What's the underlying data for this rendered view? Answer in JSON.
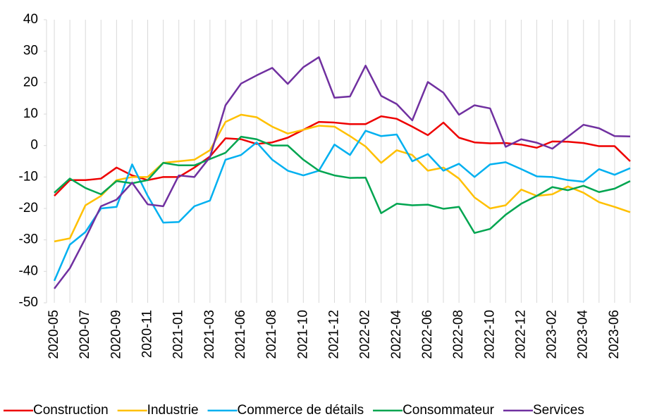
{
  "chart_data": {
    "type": "line",
    "categories": [
      "2020-05",
      null,
      "2020-07",
      null,
      "2020-09",
      null,
      "2020-11",
      null,
      "2021-01",
      null,
      "2021-03",
      null,
      "2021-06",
      null,
      "2021-08",
      null,
      "2021-10",
      null,
      "2021-12",
      null,
      "2022-02",
      null,
      "2022-04",
      null,
      "2022-06",
      null,
      "2022-08",
      null,
      "2022-10",
      null,
      "2022-12",
      null,
      "2023-02",
      null,
      "2023-04",
      null,
      "2023-06",
      null
    ],
    "series": [
      {
        "name": "Construction",
        "color": "#ee0000",
        "values": [
          -16,
          -11,
          -11,
          -10.5,
          -7,
          -9.5,
          -11,
          -10,
          -10,
          -7,
          -3.5,
          2.3,
          2,
          0.5,
          1,
          2.5,
          5,
          7.5,
          7.3,
          6.8,
          6.8,
          9.3,
          8.5,
          6,
          3.3,
          7.3,
          2.5,
          1,
          0.7,
          0.8,
          0.3,
          -0.7,
          1.3,
          1.2,
          0.8,
          -0.2,
          -0.2,
          -5
        ]
      },
      {
        "name": "Industrie",
        "color": "#ffc000",
        "values": [
          -30.5,
          -29.5,
          -19,
          -16,
          -11,
          -10,
          -10,
          -5.5,
          -5,
          -4.5,
          -1.5,
          7.5,
          9.8,
          9,
          6,
          3.8,
          5,
          6.3,
          6,
          3,
          -0.3,
          -5.5,
          -1.5,
          -3,
          -8,
          -7,
          -10.5,
          -16.5,
          -20,
          -19,
          -14,
          -16,
          -15.5,
          -13,
          -15,
          -18,
          -19.5,
          -21.2
        ]
      },
      {
        "name": "Commerce de détails",
        "color": "#00b0f0",
        "values": [
          -43,
          -31.5,
          -27.5,
          -20,
          -19.5,
          -6,
          -16,
          -24.5,
          -24.3,
          -19.3,
          -17.5,
          -4.5,
          -3,
          1,
          -4.5,
          -8,
          -9.5,
          -8,
          0.3,
          -3,
          4.7,
          3,
          3.5,
          -5,
          -2.7,
          -8,
          -5.8,
          -10,
          -6,
          -5.3,
          -7.5,
          -9.8,
          -10,
          -11,
          -11.5,
          -7.5,
          -9.3,
          -7.2
        ]
      },
      {
        "name": "Consommateur",
        "color": "#00a550",
        "values": [
          -15,
          -10.5,
          -13.5,
          -15.5,
          -11.3,
          -12,
          -11,
          -5.5,
          -6.3,
          -6.3,
          -4.3,
          -2.3,
          2.8,
          2,
          0,
          0,
          -4.5,
          -8,
          -9.5,
          -10.3,
          -10.2,
          -21.5,
          -18.5,
          -19,
          -18.8,
          -20.1,
          -19.5,
          -27.8,
          -26.5,
          -22,
          -18.5,
          -16,
          -13.2,
          -14.2,
          -12.8,
          -14.8,
          -13.7,
          -11.3
        ]
      },
      {
        "name": "Services",
        "color": "#7030a0",
        "values": [
          -45.5,
          -39,
          -29.5,
          -19.3,
          -17.2,
          -11.8,
          -18.7,
          -19.3,
          -9.5,
          -10,
          -3.7,
          12.8,
          19.7,
          22.3,
          24.7,
          19.6,
          24.9,
          28.1,
          15.2,
          15.6,
          25.4,
          15.8,
          13.2,
          8,
          20.2,
          16.8,
          9.8,
          12.8,
          11.8,
          -0.4,
          2,
          0.9,
          -1,
          2.8,
          6.6,
          5.5,
          3,
          2.9
        ]
      }
    ],
    "ylim": [
      -50,
      40
    ],
    "yticks": [
      -50,
      -40,
      -30,
      -20,
      -10,
      0,
      10,
      20,
      30,
      40
    ],
    "legend": "bottom"
  }
}
